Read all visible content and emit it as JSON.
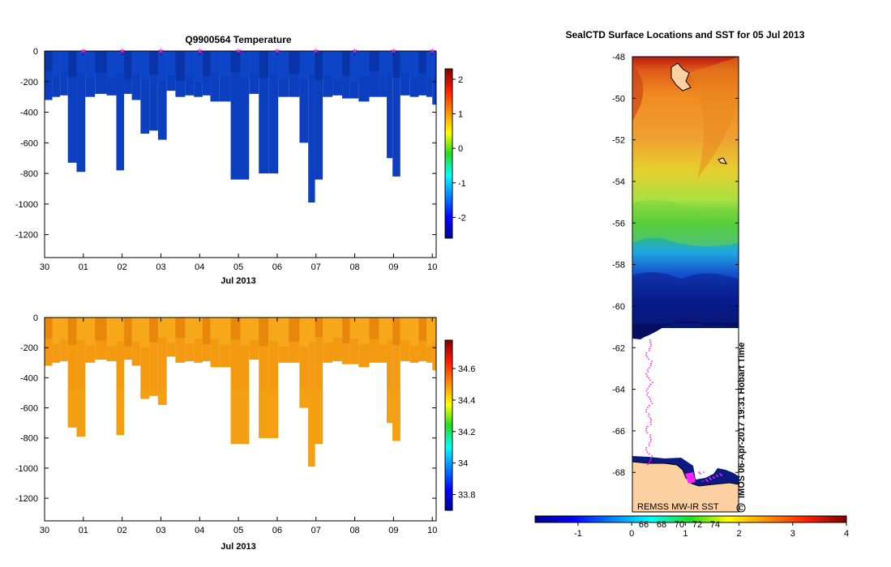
{
  "chart_data": [
    {
      "type": "heatmap",
      "title": "Q9900564  Temperature",
      "xlabel": "Jul 2013",
      "x_ticks": [
        "30",
        "01",
        "02",
        "03",
        "04",
        "05",
        "06",
        "07",
        "08",
        "09",
        "10"
      ],
      "y_ticks": [
        0,
        -200,
        -400,
        -600,
        -800,
        -1000,
        -1200
      ],
      "ylim": [
        -1350,
        0
      ],
      "x_range_days": [
        0,
        10.1
      ],
      "profile_times": [
        0.1,
        0.3,
        0.5,
        0.7,
        0.95,
        1.15,
        1.45,
        1.75,
        1.95,
        2.15,
        2.35,
        2.6,
        2.8,
        3.05,
        3.25,
        3.5,
        3.75,
        3.95,
        4.2,
        4.35,
        4.65,
        4.95,
        5.15,
        5.4,
        5.65,
        5.9,
        6.15,
        6.45,
        6.7,
        6.9,
        7.05,
        7.3,
        7.55,
        7.8,
        7.95,
        8.25,
        8.5,
        8.75,
        8.9,
        9.05,
        9.3,
        9.55,
        9.75,
        9.95,
        10.05
      ],
      "profile_depths": [
        -320,
        -300,
        -290,
        -730,
        -790,
        -300,
        -280,
        -290,
        -780,
        -280,
        -320,
        -540,
        -520,
        -580,
        -260,
        -300,
        -290,
        -300,
        -290,
        -330,
        -330,
        -840,
        -840,
        -280,
        -800,
        -800,
        -300,
        -300,
        -600,
        -990,
        -840,
        -300,
        -290,
        -310,
        -310,
        -330,
        -300,
        -300,
        -700,
        -820,
        -290,
        -300,
        -290,
        -300,
        -350
      ],
      "surface_markers": [
        1,
        2,
        3,
        4,
        5,
        6,
        7,
        8,
        9,
        10
      ],
      "colorbar": {
        "ticks": [
          -2,
          -1,
          0,
          1,
          2
        ],
        "range": [
          -2.6,
          2.3
        ]
      },
      "colors": {
        "field": "#0b3fbf",
        "field_dark": "#0834a8",
        "marker": "#e020e0"
      }
    },
    {
      "type": "heatmap",
      "title": "",
      "xlabel": "Jul 2013",
      "x_ticks": [
        "30",
        "01",
        "02",
        "03",
        "04",
        "05",
        "06",
        "07",
        "08",
        "09",
        "10"
      ],
      "y_ticks": [
        0,
        -200,
        -400,
        -600,
        -800,
        -1000,
        -1200
      ],
      "ylim": [
        -1350,
        0
      ],
      "colorbar": {
        "ticks": [
          33.8,
          34,
          34.2,
          34.4,
          34.6
        ],
        "range": [
          33.7,
          34.78
        ]
      },
      "colors": {
        "field": "#f39a10",
        "field_dark": "#e8870c",
        "field_light": "#f7a818"
      }
    },
    {
      "type": "heatmap",
      "title": "SealCTD Surface Locations and SST for 05 Jul 2013",
      "y_ticks": [
        -48,
        -50,
        -52,
        -54,
        -56,
        -58,
        -60,
        -62,
        -64,
        -66,
        -68
      ],
      "ylim": [
        -69.9,
        -48
      ],
      "colorbar": {
        "ticks": [
          -1,
          0,
          1,
          2,
          3,
          4
        ],
        "range": [
          -1.8,
          4.0
        ]
      },
      "colorbar_overlay_ticks": [
        "66",
        "68",
        "70",
        "72",
        "74"
      ],
      "annotation_source": "REMSS MW-IR SST",
      "annotation_credit": "IMOS 06-Apr-2017 19:31 Hobart Time",
      "colors": {
        "land": "#fcd0a0",
        "seal": "#ff22ff"
      }
    }
  ]
}
